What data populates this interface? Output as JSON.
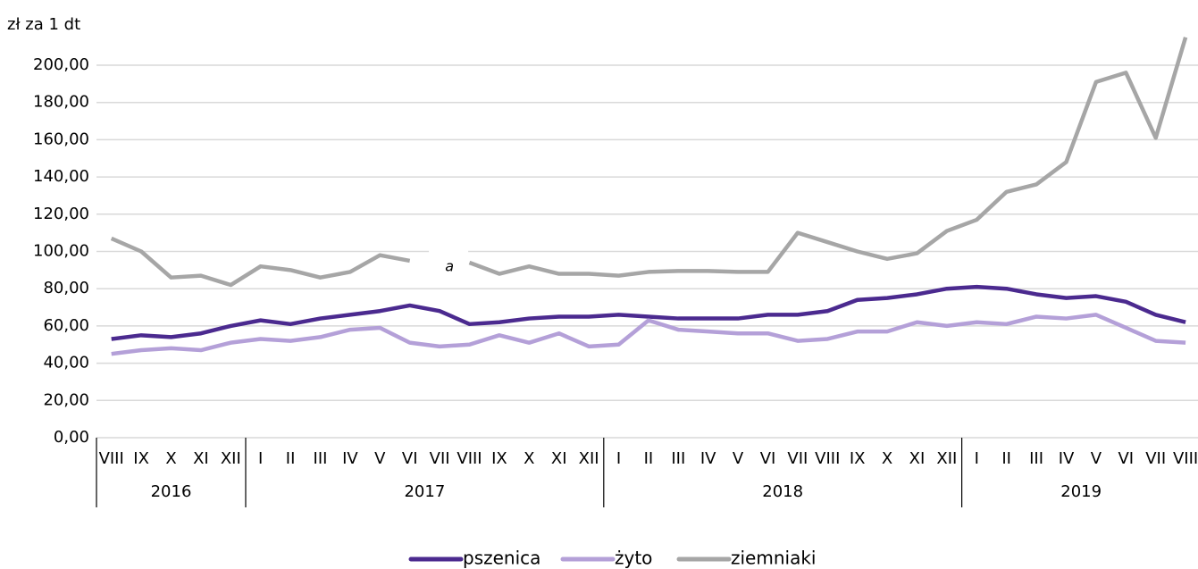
{
  "chart_data": {
    "type": "line",
    "y_axis_label": "zł za 1 dt",
    "categories": [
      "VIII",
      "IX",
      "X",
      "XI",
      "XII",
      "I",
      "II",
      "III",
      "IV",
      "V",
      "VI",
      "VII",
      "VIII",
      "IX",
      "X",
      "XI",
      "XII",
      "I",
      "II",
      "III",
      "IV",
      "V",
      "VI",
      "VII",
      "VIII",
      "IX",
      "X",
      "XI",
      "XII",
      "I",
      "II",
      "III",
      "IV",
      "V",
      "VI",
      "VII",
      "VIII"
    ],
    "groups": [
      {
        "name": "2016",
        "span": 5
      },
      {
        "name": "2017",
        "span": 12
      },
      {
        "name": "2018",
        "span": 12
      },
      {
        "name": "2019",
        "span": 8
      }
    ],
    "series": [
      {
        "name": "pszenica",
        "color": "#4b2a8f",
        "values": [
          53,
          55,
          54,
          56,
          60,
          63,
          61,
          64,
          66,
          68,
          71,
          68,
          61,
          62,
          64,
          65,
          65,
          66,
          65,
          64,
          64,
          64,
          66,
          66,
          68,
          74,
          75,
          77,
          80,
          81,
          80,
          77,
          75,
          76,
          73,
          66,
          62
        ]
      },
      {
        "name": "żyto",
        "color": "#b4a0d8",
        "values": [
          45,
          47,
          48,
          47,
          51,
          53,
          52,
          54,
          58,
          59,
          51,
          49,
          50,
          55,
          51,
          56,
          49,
          50,
          63,
          58,
          57,
          56,
          56,
          52,
          53,
          57,
          57,
          62,
          60,
          62,
          61,
          65,
          64,
          66,
          59,
          52,
          51
        ]
      },
      {
        "name": "ziemniaki",
        "color": "#a6a6a6",
        "values": [
          107,
          100,
          86,
          87,
          82,
          92,
          90,
          86,
          89,
          98,
          95,
          null,
          94,
          88,
          92,
          88,
          88,
          87,
          89,
          89.5,
          89.5,
          89,
          89,
          110,
          105,
          100,
          96,
          99,
          111,
          117,
          132,
          136,
          148,
          191,
          196,
          161,
          215
        ]
      }
    ],
    "annotations": [
      {
        "text": "a"
      }
    ],
    "ylim": [
      0,
      200
    ],
    "yticks": [
      {
        "value": 0,
        "label": "0,00"
      },
      {
        "value": 20,
        "label": "20,00"
      },
      {
        "value": 40,
        "label": "40,00"
      },
      {
        "value": 60,
        "label": "60,00"
      },
      {
        "value": 80,
        "label": "80,00"
      },
      {
        "value": 100,
        "label": "100,00"
      },
      {
        "value": 120,
        "label": "120,00"
      },
      {
        "value": 140,
        "label": "140,00"
      },
      {
        "value": 160,
        "label": "160,00"
      },
      {
        "value": 180,
        "label": "180,00"
      },
      {
        "value": 200,
        "label": "200,00"
      }
    ],
    "grid": true,
    "legend": "bottom"
  }
}
